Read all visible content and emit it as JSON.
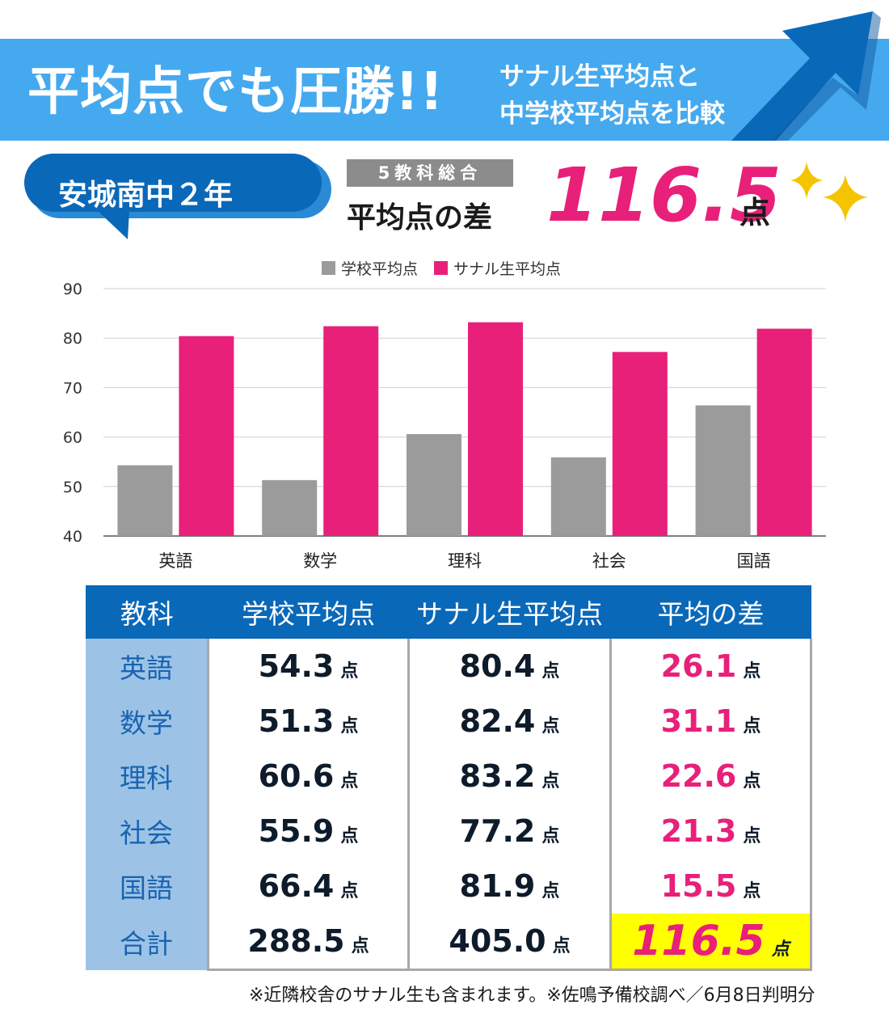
{
  "header": {
    "title": "平均点でも圧勝!!",
    "subtitle_line1": "サナル生平均点と",
    "subtitle_line2": "中学校平均点を比較"
  },
  "school": {
    "label": "安城南中２年"
  },
  "summary": {
    "badge": "5教科総合",
    "label": "平均点の差",
    "value": "116.5",
    "unit": "点"
  },
  "colors": {
    "school": "#9b9b9b",
    "sanaru": "#e8207a",
    "header_blue": "#45a9ef",
    "table_header": "#0a68b8"
  },
  "chart_data": {
    "type": "bar",
    "categories": [
      "英語",
      "数学",
      "理科",
      "社会",
      "国語"
    ],
    "series": [
      {
        "name": "学校平均点",
        "values": [
          54.3,
          51.3,
          60.6,
          55.9,
          66.4
        ]
      },
      {
        "name": "サナル生平均点",
        "values": [
          80.4,
          82.4,
          83.2,
          77.2,
          81.9
        ]
      }
    ],
    "ylim": [
      40,
      90
    ],
    "yticks": [
      40,
      50,
      60,
      70,
      80,
      90
    ],
    "grid": true,
    "legend": "top-center"
  },
  "table": {
    "headers": [
      "教科",
      "学校平均点",
      "サナル生平均点",
      "平均の差"
    ],
    "unit": "点",
    "rows": [
      {
        "subject": "英語",
        "school": "54.3",
        "sanaru": "80.4",
        "diff": "26.1"
      },
      {
        "subject": "数学",
        "school": "51.3",
        "sanaru": "82.4",
        "diff": "31.1"
      },
      {
        "subject": "理科",
        "school": "60.6",
        "sanaru": "83.2",
        "diff": "22.6"
      },
      {
        "subject": "社会",
        "school": "55.9",
        "sanaru": "77.2",
        "diff": "21.3"
      },
      {
        "subject": "国語",
        "school": "66.4",
        "sanaru": "81.9",
        "diff": "15.5"
      }
    ],
    "total": {
      "subject": "合計",
      "school": "288.5",
      "sanaru": "405.0",
      "diff": "116.5"
    }
  },
  "footnote": "※近隣校舎のサナル生も含まれます。※佐鳴予備校調べ／6月8日判明分"
}
